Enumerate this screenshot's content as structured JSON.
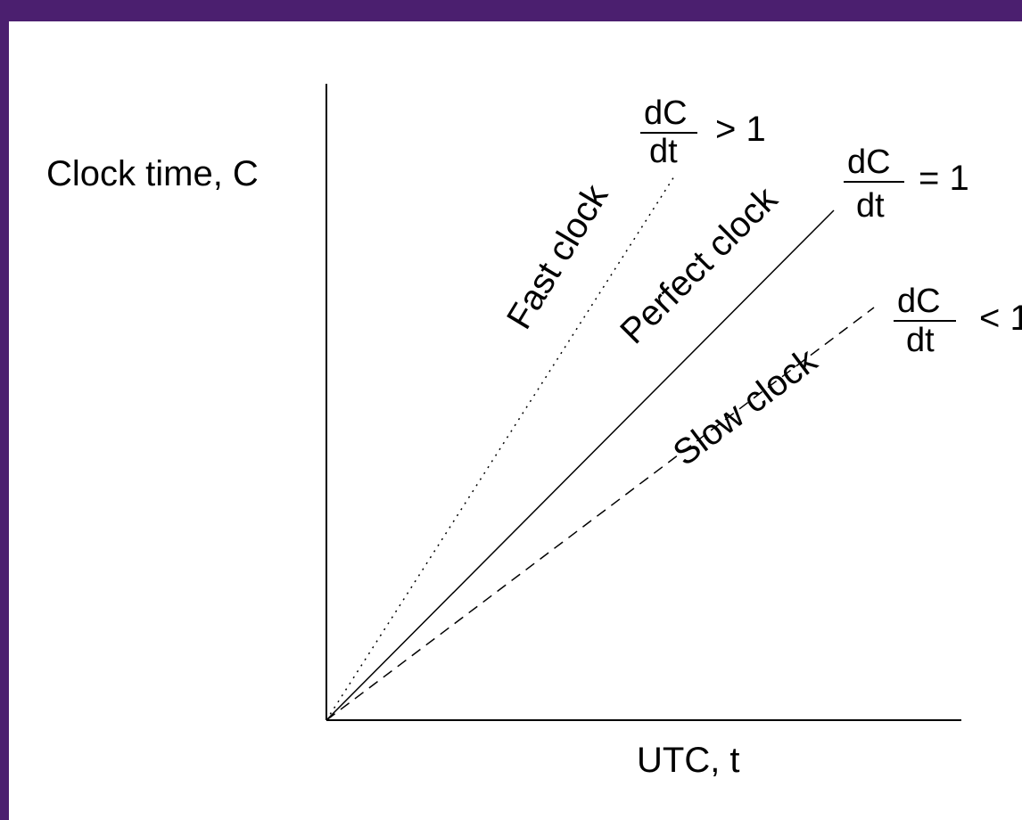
{
  "axes": {
    "y_label": "Clock time, C",
    "x_label": "UTC, t"
  },
  "lines": [
    {
      "name": "Fast clock",
      "style": "dotted",
      "slope": "> 1"
    },
    {
      "name": "Perfect clock",
      "style": "solid",
      "slope": "= 1"
    },
    {
      "name": "Slow clock",
      "style": "dashed",
      "slope": "< 1"
    }
  ],
  "derivative": {
    "numerator": "dC",
    "denominator": "dt"
  },
  "colors": {
    "border": "#4b1f6f",
    "background": "#ffffff",
    "ink": "#000000"
  }
}
